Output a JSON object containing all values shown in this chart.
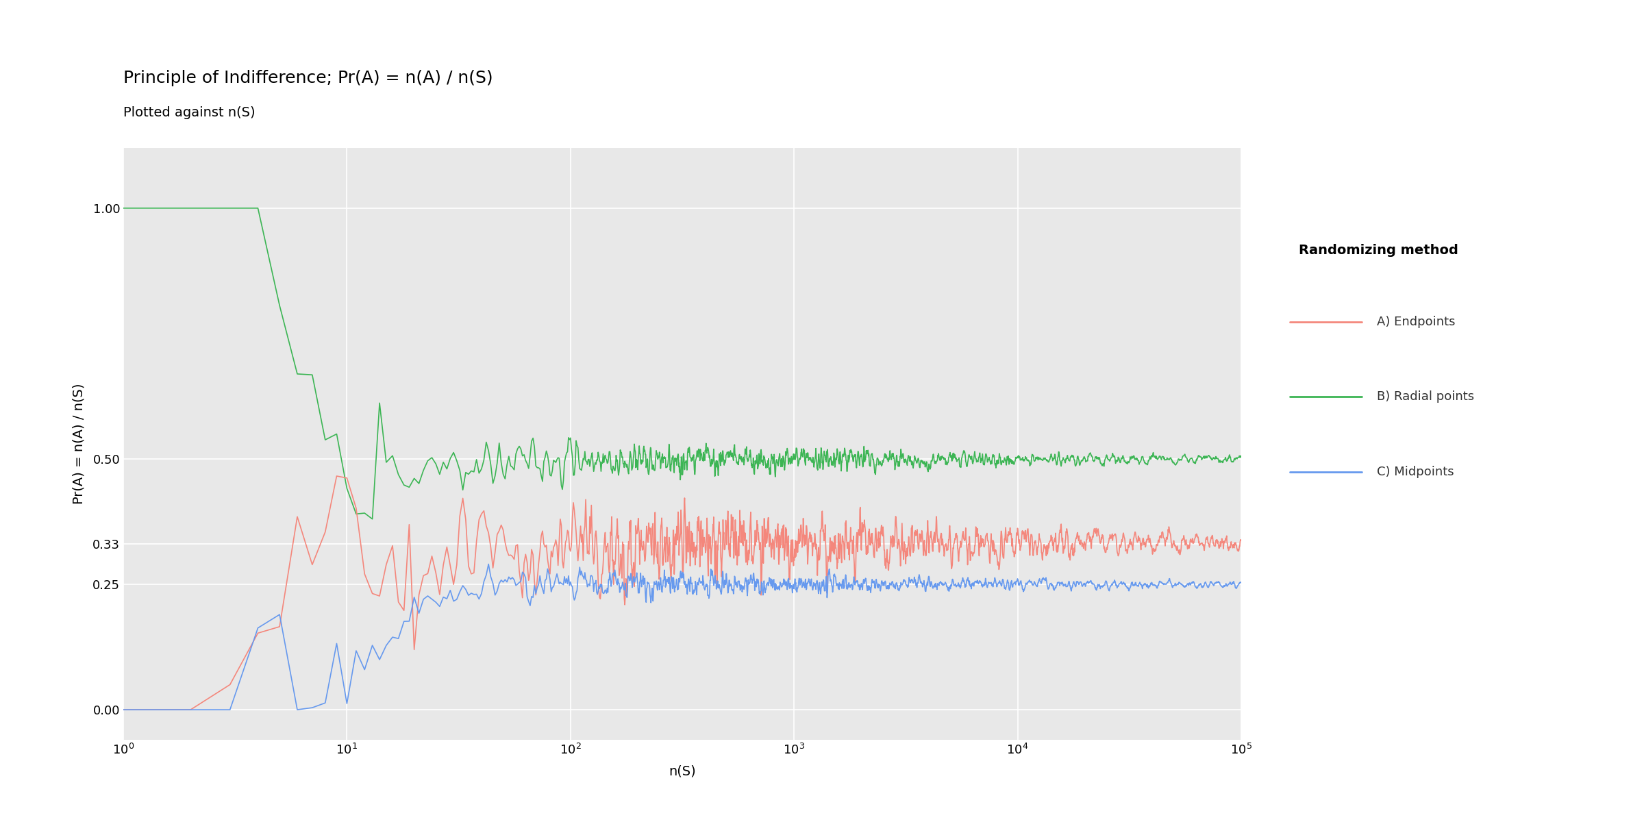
{
  "title_line1": "Principle of Indifference; Pr(A) = n(A) / n(S)",
  "title_line2": "Plotted against n(S)",
  "xlabel": "n(S)",
  "ylabel": "Pr(A) = n(A) / n(S)",
  "background_color": "#E8E8E8",
  "figure_bg": "#FFFFFF",
  "grid_color": "#FFFFFF",
  "series": [
    {
      "label": "A) Endpoints",
      "color": "#F4877C",
      "asymptote": 0.3333
    },
    {
      "label": "B) Radial points",
      "color": "#3CB554",
      "asymptote": 0.5
    },
    {
      "label": "C) Midpoints",
      "color": "#6699EE",
      "asymptote": 0.25
    }
  ],
  "legend_title": "Randomizing method",
  "title_fontsize": 18,
  "subtitle_fontsize": 14,
  "axis_label_fontsize": 14,
  "tick_fontsize": 13,
  "legend_fontsize": 14,
  "line_width": 1.2
}
